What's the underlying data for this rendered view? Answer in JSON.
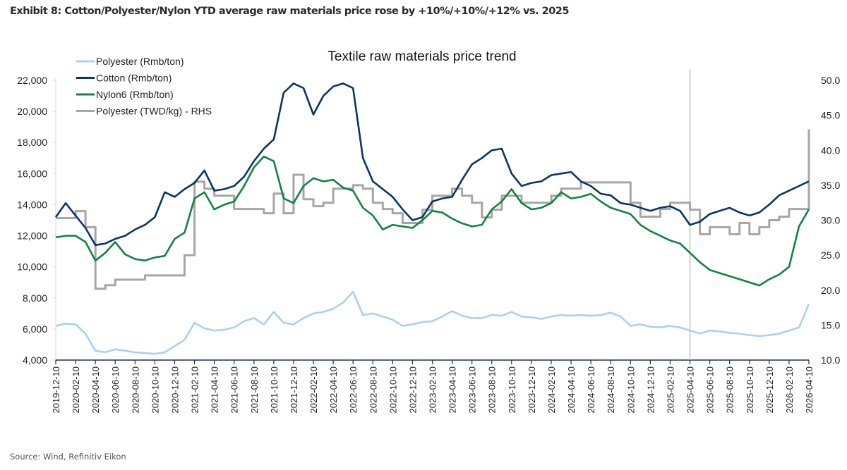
{
  "exhibit_title": "Exhibit 8: Cotton/Polyester/Nylon YTD average raw materials price rose by +10%/+10%/+12% vs. 2025",
  "source": "Source: Wind, Refinitiv Eikon",
  "chart_data": {
    "type": "line",
    "title": "Textile raw materials price trend",
    "xlabel": "",
    "ylabel": "",
    "y2label": "",
    "ylim": [
      4000,
      22000
    ],
    "y2lim": [
      10,
      50
    ],
    "yticks": [
      "4,000",
      "6,000",
      "8,000",
      "10,000",
      "12,000",
      "14,000",
      "16,000",
      "18,000",
      "20,000",
      "22,000"
    ],
    "y2ticks": [
      "10.0",
      "15.0",
      "20.0",
      "25.0",
      "30.0",
      "35.0",
      "40.0",
      "45.0",
      "50.0"
    ],
    "xticks": [
      "2019-12-10",
      "2020-02-10",
      "2020-04-10",
      "2020-06-10",
      "2020-08-10",
      "2020-10-10",
      "2020-12-10",
      "2021-02-10",
      "2021-04-10",
      "2021-06-10",
      "2021-08-10",
      "2021-10-10",
      "2021-12-10",
      "2022-02-10",
      "2022-04-10",
      "2022-06-10",
      "2022-08-10",
      "2022-10-10",
      "2022-12-10",
      "2023-02-10",
      "2023-04-10",
      "2023-06-10",
      "2023-08-10",
      "2023-10-10",
      "2023-12-10",
      "2024-02-10",
      "2024-04-10",
      "2024-06-10",
      "2024-08-10",
      "2024-10-10",
      "2024-12-10",
      "2025-02-10",
      "2025-04-10",
      "2025-06-10",
      "2025-08-10",
      "2025-10-10",
      "2025-12-10",
      "2026-02-10",
      "2026-04-10"
    ],
    "grid": false,
    "legend_position": "top-left",
    "vertical_marker": "2025-04-10",
    "x": [
      "2019-12",
      "2020-01",
      "2020-02",
      "2020-03",
      "2020-04",
      "2020-05",
      "2020-06",
      "2020-07",
      "2020-08",
      "2020-09",
      "2020-10",
      "2020-11",
      "2020-12",
      "2021-01",
      "2021-02",
      "2021-03",
      "2021-04",
      "2021-05",
      "2021-06",
      "2021-07",
      "2021-08",
      "2021-09",
      "2021-10",
      "2021-11",
      "2021-12",
      "2022-01",
      "2022-02",
      "2022-03",
      "2022-04",
      "2022-05",
      "2022-06",
      "2022-07",
      "2022-08",
      "2022-09",
      "2022-10",
      "2022-11",
      "2022-12",
      "2023-01",
      "2023-02",
      "2023-03",
      "2023-04",
      "2023-05",
      "2023-06",
      "2023-07",
      "2023-08",
      "2023-09",
      "2023-10",
      "2023-11",
      "2023-12",
      "2024-01",
      "2024-02",
      "2024-03",
      "2024-04",
      "2024-05",
      "2024-06",
      "2024-07",
      "2024-08",
      "2024-09",
      "2024-10",
      "2024-11",
      "2024-12",
      "2025-01",
      "2025-02",
      "2025-03",
      "2025-04",
      "2025-05",
      "2025-06",
      "2025-07",
      "2025-08",
      "2025-09",
      "2025-10",
      "2025-11",
      "2025-12",
      "2026-01",
      "2026-02",
      "2026-03",
      "2026-04"
    ],
    "series": [
      {
        "name": "Polyester (Rmb/ton)",
        "axis": "left",
        "color": "#a9d1f0",
        "values": [
          6200,
          6350,
          6300,
          5700,
          4600,
          4500,
          4700,
          4600,
          4500,
          4450,
          4400,
          4500,
          4900,
          5300,
          6400,
          6050,
          5900,
          5950,
          6100,
          6500,
          6700,
          6300,
          7100,
          6400,
          6300,
          6700,
          7000,
          7100,
          7300,
          7700,
          8400,
          6900,
          7000,
          6800,
          6600,
          6200,
          6300,
          6450,
          6500,
          6800,
          7150,
          6850,
          6700,
          6700,
          6900,
          6850,
          7100,
          6800,
          6750,
          6650,
          6800,
          6900,
          6850,
          6900,
          6850,
          6900,
          7050,
          6800,
          6200,
          6300,
          6150,
          6100,
          6200,
          6100,
          5900,
          5700,
          5900,
          5850,
          5750,
          5700,
          5600,
          5550,
          5600,
          5700,
          5900,
          6100,
          7600
        ]
      },
      {
        "name": "Cotton (Rmb/ton)",
        "axis": "left",
        "color": "#0b3563",
        "values": [
          13200,
          14100,
          13300,
          12500,
          11400,
          11500,
          11800,
          12000,
          12400,
          12700,
          13200,
          14800,
          14500,
          15000,
          15400,
          16200,
          14900,
          15000,
          15200,
          15800,
          16800,
          17600,
          18200,
          21200,
          21800,
          21500,
          19800,
          21000,
          21600,
          21800,
          21500,
          17000,
          15500,
          15000,
          14500,
          13700,
          13000,
          13200,
          14200,
          14400,
          14500,
          15600,
          16600,
          17000,
          17500,
          17600,
          16000,
          15200,
          15400,
          15500,
          15900,
          16000,
          16100,
          15500,
          15200,
          14700,
          14600,
          14100,
          14000,
          13800,
          13600,
          13800,
          13900,
          13600,
          12700,
          12900,
          13400,
          13600,
          13800,
          13500,
          13300,
          13500,
          14000,
          14600,
          14900,
          15200,
          15500
        ]
      },
      {
        "name": "Nylon6 (Rmb/ton)",
        "axis": "left",
        "color": "#11843f",
        "values": [
          11900,
          12000,
          12000,
          11600,
          10400,
          10900,
          11600,
          10800,
          10500,
          10400,
          10600,
          10700,
          11800,
          12200,
          14400,
          14800,
          13700,
          14000,
          14200,
          15200,
          16400,
          17100,
          16800,
          14400,
          14100,
          15200,
          15700,
          15500,
          15600,
          15100,
          14900,
          13800,
          13300,
          12400,
          12700,
          12600,
          12500,
          13000,
          13600,
          13500,
          13100,
          12800,
          12600,
          12700,
          13700,
          14200,
          15000,
          14100,
          13700,
          13800,
          14100,
          14800,
          14400,
          14500,
          14700,
          14200,
          13800,
          13600,
          13400,
          12700,
          12300,
          12000,
          11700,
          11500,
          10900,
          10300,
          9800,
          9600,
          9400,
          9200,
          9000,
          8800,
          9200,
          9500,
          10000,
          12600,
          13700
        ]
      },
      {
        "name": "Polyester (TWD/kg)  - RHS",
        "axis": "right",
        "color": "#a6a6a6",
        "values": [
          30.3,
          30.3,
          31.3,
          29.0,
          20.2,
          20.7,
          21.5,
          21.5,
          21.5,
          22.1,
          22.1,
          22.1,
          22.1,
          25.0,
          35.5,
          34.5,
          33.5,
          33.5,
          31.6,
          31.6,
          31.6,
          31.0,
          33.8,
          31.0,
          36.5,
          33.0,
          32.0,
          32.5,
          34.5,
          34.5,
          35.0,
          34.5,
          32.5,
          31.6,
          31.0,
          29.6,
          29.6,
          31.5,
          33.5,
          33.5,
          34.5,
          33.5,
          32.5,
          30.4,
          31.5,
          33.5,
          33.5,
          32.5,
          32.5,
          32.5,
          33.5,
          34.5,
          34.5,
          35.4,
          35.4,
          35.4,
          35.4,
          35.4,
          32.5,
          30.5,
          30.5,
          31.6,
          32.5,
          32.5,
          31.5,
          28.0,
          29.0,
          29.0,
          28.0,
          29.6,
          28.0,
          29.0,
          30.0,
          30.5,
          31.6,
          31.6,
          43.0
        ]
      }
    ]
  }
}
